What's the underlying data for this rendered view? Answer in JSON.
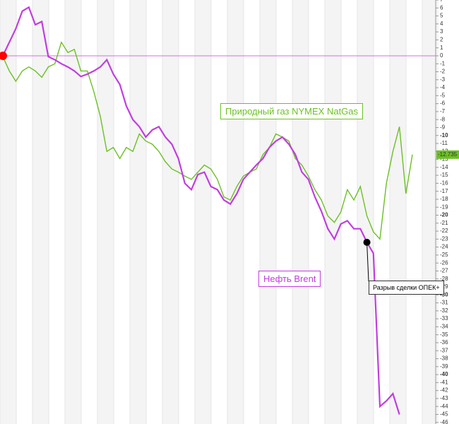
{
  "chart_data": {
    "type": "line",
    "annotations": [
      "Природный газ NYMEX NatGas",
      "Нефть Brent",
      "Разрыв сделки ОПЕК+"
    ],
    "current_label": "-12.735",
    "series": [
      {
        "name": "Нефть Brent",
        "color": "#c23de0",
        "values": [
          0,
          1.7,
          3.4,
          5.6,
          6.1,
          3.9,
          4.3,
          -0.1,
          -0.5,
          -1,
          -1.4,
          -1.9,
          -2.6,
          -2.3,
          -1.9,
          -1.4,
          -0.5,
          -2.3,
          -3.6,
          -6.3,
          -8,
          -8.9,
          -10.2,
          -9.3,
          -8.9,
          -10.2,
          -11.1,
          -12.9,
          -16,
          -16.8,
          -14.9,
          -14.6,
          -16.4,
          -16.8,
          -18.1,
          -18.6,
          -17.3,
          -15.5,
          -14.6,
          -13.7,
          -12.9,
          -11.5,
          -10.7,
          -10.2,
          -11.1,
          -12.4,
          -14.6,
          -15.5,
          -17.7,
          -19.5,
          -21.7,
          -23,
          -21.1,
          -20.7,
          -21.7,
          -21.7,
          -23.4,
          -24.8,
          -44,
          -43.3,
          -42.4,
          -45,
          null,
          null
        ]
      },
      {
        "name": "Природный газ NYMEX NatGas",
        "color": "#6cc024",
        "values": [
          -0.1,
          -1.9,
          -3.2,
          -1.9,
          -1.4,
          -1.9,
          -2.7,
          -1.4,
          -1,
          1.7,
          0.4,
          0.8,
          -1.9,
          -1.9,
          -4.5,
          -7.6,
          -12,
          -11.5,
          -12.9,
          -11.5,
          -12,
          -9.8,
          -10.7,
          -11.1,
          -12,
          -13.3,
          -14.2,
          -14.6,
          -15.1,
          -15.5,
          -14.6,
          -13.7,
          -14.2,
          -15.5,
          -17.7,
          -18.1,
          -16.4,
          -15.1,
          -14.6,
          -14.2,
          -12.4,
          -11.5,
          -9.8,
          -10.2,
          -10.7,
          -12.9,
          -13.7,
          -15.1,
          -16.8,
          -18.1,
          -20.1,
          -20.9,
          -19.6,
          -16.8,
          -18.1,
          -16.4,
          -20.1,
          -22.1,
          -23,
          -16,
          -12,
          -8.9,
          -17.3,
          -12.4
        ]
      }
    ],
    "ylim": [
      -46.2,
      7
    ],
    "yticks": [
      7,
      6,
      5,
      4,
      3,
      2,
      1,
      0,
      -1,
      -2,
      -3,
      -4,
      -5,
      -6,
      -7,
      -8,
      -9,
      -10,
      -11,
      -12,
      -13,
      -14,
      -15,
      -16,
      -17,
      -18,
      -19,
      -20,
      -21,
      -22,
      -23,
      -24,
      -25,
      -26,
      -27,
      -28,
      -29,
      -30,
      -31,
      -32,
      -33,
      -34,
      -35,
      -36,
      -37,
      -38,
      -39,
      -40,
      -41,
      -42,
      -43,
      -44,
      -45,
      -46
    ]
  }
}
